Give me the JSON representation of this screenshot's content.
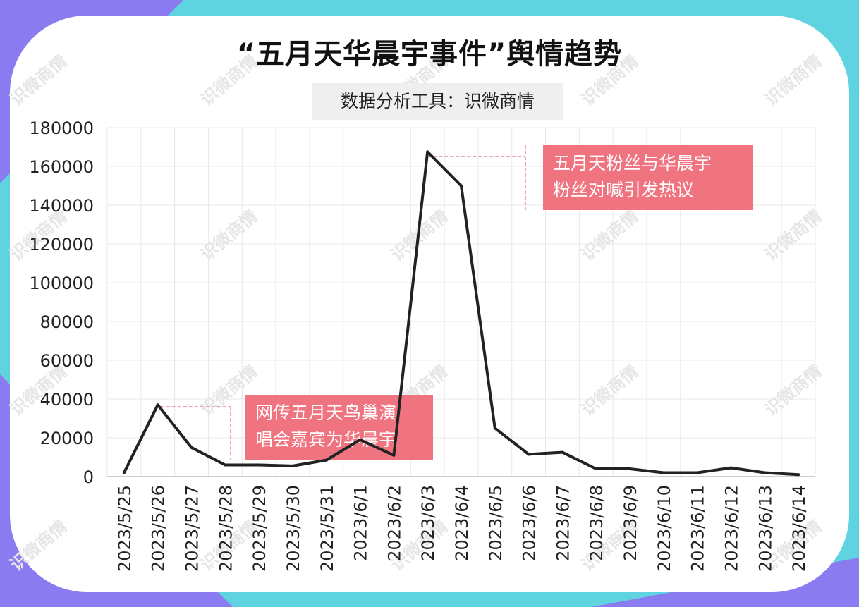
{
  "title": "“五月天华晨宇事件”舆情趋势",
  "subtitle": "数据分析工具：识微商情",
  "watermark": "识微商情",
  "colors": {
    "line": "#222222",
    "annotation_bg": "#f07480",
    "annotation_text": "#ffffff",
    "leader": "#e56b78",
    "grid": "#e8e8e8"
  },
  "chart_data": {
    "type": "line",
    "x": [
      "2023/5/25",
      "2023/5/26",
      "2023/5/27",
      "2023/5/28",
      "2023/5/29",
      "2023/5/30",
      "2023/5/31",
      "2023/6/1",
      "2023/6/2",
      "2023/6/3",
      "2023/6/4",
      "2023/6/5",
      "2023/6/6",
      "2023/6/7",
      "2023/6/8",
      "2023/6/9",
      "2023/6/10",
      "2023/6/11",
      "2023/6/12",
      "2023/6/13",
      "2023/6/14"
    ],
    "values": [
      2000,
      37000,
      15000,
      6000,
      6000,
      5500,
      8500,
      19000,
      11000,
      167500,
      150000,
      25000,
      11500,
      12500,
      4000,
      4000,
      2000,
      2000,
      4500,
      2000,
      1000
    ],
    "ylim": [
      0,
      180000
    ],
    "yticks": [
      0,
      20000,
      40000,
      60000,
      80000,
      100000,
      120000,
      140000,
      160000,
      180000
    ],
    "grid": true,
    "annotations": [
      {
        "lines": [
          "网传五月天鸟巢演",
          "唱会嘉宾为华晨宇"
        ],
        "at": "2023/5/26"
      },
      {
        "lines": [
          "五月天粉丝与华晨宇",
          "粉丝对喊引发热议"
        ],
        "at": "2023/6/3"
      }
    ]
  }
}
